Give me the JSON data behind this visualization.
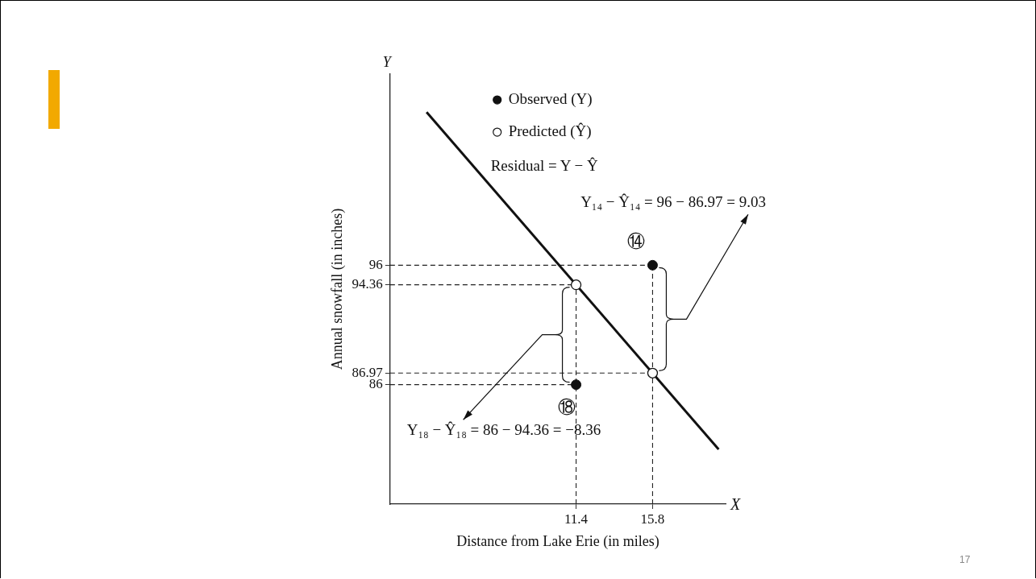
{
  "chart_data": {
    "type": "scatter",
    "xlabel": "Distance from Lake Erie (in miles)",
    "ylabel": "Annual snowfall (in inches)",
    "xlim": [
      0.7,
      20
    ],
    "ylim": [
      76,
      112
    ],
    "xticks": [
      11.4,
      15.8
    ],
    "yticks": [
      86,
      86.97,
      94.36,
      96
    ],
    "grid": false,
    "legend": "top",
    "marker": "circle",
    "series": [
      {
        "name": "Observed (Y)",
        "color": "#111111",
        "x": [
          11.4,
          15.8
        ],
        "values": [
          86,
          96
        ]
      },
      {
        "name": "Predicted (Ŷ)",
        "color": "#111111",
        "x": [
          11.4,
          15.8
        ],
        "values": [
          94.36,
          86.97
        ]
      },
      {
        "type": "line",
        "color": "#111111",
        "x": [
          2.8,
          19.6
        ],
        "values": [
          108.81,
          80.58
        ],
        "marker": "none",
        "line_style": "solid"
      }
    ],
    "ref_lines": [
      {
        "axis": "y",
        "value": 96,
        "line_style": "dashed",
        "color": "#222222"
      },
      {
        "axis": "y",
        "value": 94.36,
        "line_style": "dashed",
        "color": "#222222"
      },
      {
        "axis": "y",
        "value": 86.97,
        "line_style": "dashed",
        "color": "#222222"
      },
      {
        "axis": "y",
        "value": 86,
        "line_style": "dashed",
        "color": "#222222"
      },
      {
        "axis": "x",
        "value": 11.4,
        "line_style": "dashed",
        "color": "#222222"
      },
      {
        "axis": "x",
        "value": 15.8,
        "line_style": "dashed",
        "color": "#222222"
      }
    ],
    "annotations": [
      "Residual = Y − Ŷ",
      "Y₁₄ − Ŷ₁₄ = 96 − 86.97 = 9.03",
      "Y₁₈ − Ŷ₁₈ = 86 − 94.36 = −8.36",
      {
        "text": "⑭",
        "x": 15.8,
        "y": 96
      },
      {
        "text": "⑱",
        "x": 11.4,
        "y": 86
      },
      "Y",
      "X",
      "17"
    ]
  }
}
